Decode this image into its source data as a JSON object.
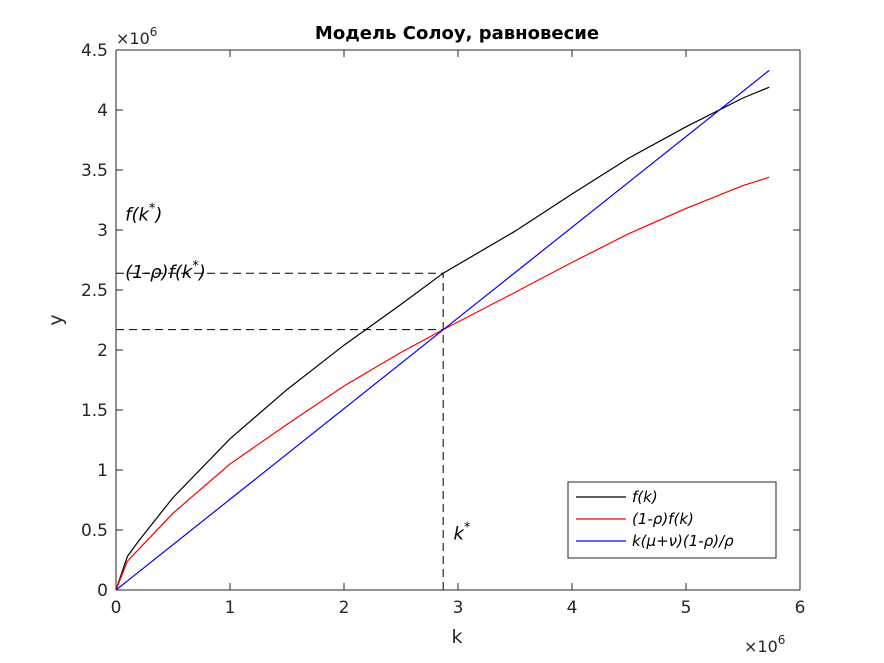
{
  "chart_data": {
    "type": "line",
    "title": "Модель Солоу, равновесие",
    "xlabel": "k",
    "ylabel": "y",
    "x_exponent_label": "×10",
    "x_exponent_power": "6",
    "y_exponent_label": "×10",
    "y_exponent_power": "6",
    "xlim": [
      0,
      6000000
    ],
    "ylim": [
      0,
      4500000
    ],
    "xticks": [
      0,
      1000000,
      2000000,
      3000000,
      4000000,
      5000000,
      6000000
    ],
    "xtick_labels": [
      "0",
      "1",
      "2",
      "3",
      "4",
      "5",
      "6"
    ],
    "yticks": [
      0,
      500000,
      1000000,
      1500000,
      2000000,
      2500000,
      3000000,
      3500000,
      4000000,
      4500000
    ],
    "ytick_labels": [
      "0",
      "0.5",
      "1",
      "1.5",
      "2",
      "2.5",
      "3",
      "3.5",
      "4",
      "4.5"
    ],
    "grid": false,
    "legend_position": "bottom-right",
    "series": [
      {
        "name": "f(k)",
        "color": "#000000",
        "x": [
          0,
          100000,
          200000,
          500000,
          1000000,
          1500000,
          2000000,
          2500000,
          2870000,
          3500000,
          4000000,
          4500000,
          5000000,
          5500000,
          5730000
        ],
        "y": [
          0,
          280000,
          410000,
          770000,
          1260000,
          1670000,
          2040000,
          2380000,
          2640000,
          2990000,
          3300000,
          3600000,
          3860000,
          4100000,
          4190000
        ]
      },
      {
        "name": "(1-ρ)f(k)",
        "color": "#ff0000",
        "x": [
          0,
          100000,
          200000,
          500000,
          1000000,
          1500000,
          2000000,
          2500000,
          2870000,
          3500000,
          4000000,
          4500000,
          5000000,
          5500000,
          5730000
        ],
        "y": [
          0,
          240000,
          340000,
          640000,
          1050000,
          1380000,
          1700000,
          1980000,
          2170000,
          2480000,
          2730000,
          2970000,
          3180000,
          3370000,
          3440000
        ]
      },
      {
        "name": "k(μ+ν)(1-ρ)/ρ",
        "color": "#0000ff",
        "x": [
          0,
          5730000
        ],
        "y": [
          0,
          4330000
        ]
      }
    ],
    "reference_lines": {
      "k_star": 2870000,
      "f_k_star": 2640000,
      "one_minus_rho_f_k_star": 2170000
    },
    "annotations": [
      {
        "text": "f(k*)",
        "base": "f(k",
        "sup": "*",
        "tail": ")",
        "x": 80000,
        "y": 3080000
      },
      {
        "text": "(1-ρ)f(k*)",
        "base": "(1-ρ)f(k",
        "sup": "*",
        "tail": ")",
        "x": 80000,
        "y": 2600000
      },
      {
        "text": "k*",
        "base": "k",
        "sup": "*",
        "tail": "",
        "x": 2960000,
        "y": 420000
      }
    ]
  }
}
